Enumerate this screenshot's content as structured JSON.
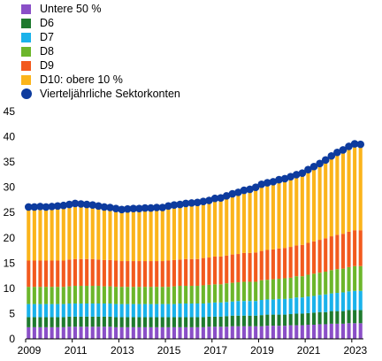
{
  "chart_data": {
    "type": "bar",
    "stacked": true,
    "title": "",
    "xlabel": "",
    "ylabel": "",
    "ylim": [
      0,
      45
    ],
    "yticks": [
      0,
      5,
      10,
      15,
      20,
      25,
      30,
      35,
      40,
      45
    ],
    "xticks": [
      "2009",
      "2011",
      "2013",
      "2015",
      "2017",
      "2019",
      "2021",
      "2023"
    ],
    "grid": false,
    "legend_position": "top-left",
    "periods_per_year": 4,
    "start_year": 2009,
    "categories": [
      "2009Q1",
      "2009Q2",
      "2009Q3",
      "2009Q4",
      "2010Q1",
      "2010Q2",
      "2010Q3",
      "2010Q4",
      "2011Q1",
      "2011Q2",
      "2011Q3",
      "2011Q4",
      "2012Q1",
      "2012Q2",
      "2012Q3",
      "2012Q4",
      "2013Q1",
      "2013Q2",
      "2013Q3",
      "2013Q4",
      "2014Q1",
      "2014Q2",
      "2014Q3",
      "2014Q4",
      "2015Q1",
      "2015Q2",
      "2015Q3",
      "2015Q4",
      "2016Q1",
      "2016Q2",
      "2016Q3",
      "2016Q4",
      "2017Q1",
      "2017Q2",
      "2017Q3",
      "2017Q4",
      "2018Q1",
      "2018Q2",
      "2018Q3",
      "2018Q4",
      "2019Q1",
      "2019Q2",
      "2019Q3",
      "2019Q4",
      "2020Q1",
      "2020Q2",
      "2020Q3",
      "2020Q4",
      "2021Q1",
      "2021Q2",
      "2021Q3",
      "2021Q4",
      "2022Q1",
      "2022Q2",
      "2022Q3",
      "2022Q4",
      "2023Q1",
      "2023Q2"
    ],
    "series": [
      {
        "name": "Untere 50 %",
        "color": "#8a4fc7",
        "values": [
          2.3,
          2.3,
          2.3,
          2.3,
          2.3,
          2.3,
          2.3,
          2.4,
          2.4,
          2.4,
          2.4,
          2.4,
          2.4,
          2.4,
          2.4,
          2.3,
          2.3,
          2.3,
          2.3,
          2.3,
          2.3,
          2.3,
          2.3,
          2.3,
          2.3,
          2.3,
          2.3,
          2.3,
          2.3,
          2.3,
          2.3,
          2.4,
          2.4,
          2.4,
          2.4,
          2.5,
          2.5,
          2.5,
          2.5,
          2.5,
          2.5,
          2.6,
          2.6,
          2.6,
          2.6,
          2.7,
          2.7,
          2.7,
          2.8,
          2.8,
          2.9,
          2.9,
          3.0,
          3.0,
          3.0,
          3.1,
          3.1,
          3.1
        ]
      },
      {
        "name": "D6",
        "color": "#1f7a2e",
        "values": [
          2.0,
          2.0,
          2.0,
          2.0,
          2.0,
          2.0,
          2.0,
          2.0,
          2.0,
          2.0,
          2.0,
          2.0,
          2.0,
          2.0,
          2.0,
          2.0,
          2.0,
          2.0,
          2.0,
          2.0,
          2.0,
          2.0,
          2.0,
          2.0,
          2.0,
          2.0,
          2.0,
          2.0,
          2.0,
          2.0,
          2.0,
          2.0,
          2.0,
          2.0,
          2.1,
          2.1,
          2.1,
          2.1,
          2.1,
          2.1,
          2.2,
          2.2,
          2.2,
          2.2,
          2.2,
          2.2,
          2.3,
          2.3,
          2.3,
          2.4,
          2.4,
          2.4,
          2.5,
          2.5,
          2.5,
          2.6,
          2.6,
          2.6
        ]
      },
      {
        "name": "D7",
        "color": "#1ab2ea",
        "values": [
          2.6,
          2.6,
          2.6,
          2.6,
          2.6,
          2.6,
          2.6,
          2.6,
          2.6,
          2.6,
          2.6,
          2.6,
          2.6,
          2.6,
          2.6,
          2.6,
          2.6,
          2.6,
          2.6,
          2.6,
          2.6,
          2.6,
          2.6,
          2.6,
          2.6,
          2.6,
          2.7,
          2.7,
          2.7,
          2.7,
          2.7,
          2.7,
          2.8,
          2.8,
          2.8,
          2.8,
          2.9,
          2.9,
          2.9,
          2.9,
          3.0,
          3.0,
          3.0,
          3.1,
          3.1,
          3.1,
          3.2,
          3.2,
          3.3,
          3.3,
          3.4,
          3.5,
          3.5,
          3.6,
          3.7,
          3.7,
          3.8,
          3.8
        ]
      },
      {
        "name": "D8",
        "color": "#6cb62b",
        "values": [
          3.4,
          3.4,
          3.4,
          3.4,
          3.4,
          3.4,
          3.4,
          3.4,
          3.5,
          3.5,
          3.5,
          3.5,
          3.5,
          3.4,
          3.4,
          3.4,
          3.4,
          3.4,
          3.4,
          3.4,
          3.4,
          3.4,
          3.4,
          3.4,
          3.4,
          3.5,
          3.5,
          3.5,
          3.5,
          3.5,
          3.6,
          3.6,
          3.6,
          3.6,
          3.7,
          3.7,
          3.7,
          3.8,
          3.8,
          3.8,
          3.9,
          3.9,
          4.0,
          4.0,
          4.1,
          4.1,
          4.2,
          4.2,
          4.3,
          4.4,
          4.4,
          4.5,
          4.6,
          4.7,
          4.7,
          4.8,
          4.9,
          4.9
        ]
      },
      {
        "name": "D9",
        "color": "#f25a1e",
        "values": [
          5.2,
          5.2,
          5.2,
          5.2,
          5.2,
          5.2,
          5.2,
          5.3,
          5.3,
          5.3,
          5.3,
          5.3,
          5.2,
          5.2,
          5.2,
          5.2,
          5.1,
          5.1,
          5.1,
          5.1,
          5.1,
          5.1,
          5.1,
          5.1,
          5.2,
          5.2,
          5.2,
          5.3,
          5.3,
          5.3,
          5.4,
          5.4,
          5.5,
          5.5,
          5.5,
          5.6,
          5.6,
          5.7,
          5.7,
          5.8,
          5.8,
          5.9,
          5.9,
          6.0,
          6.0,
          6.1,
          6.1,
          6.2,
          6.3,
          6.4,
          6.5,
          6.6,
          6.7,
          6.8,
          6.9,
          7.0,
          7.1,
          7.1
        ]
      },
      {
        "name": "D10: obere 10 %",
        "color": "#fbb41b",
        "values": [
          10.6,
          10.6,
          10.7,
          10.6,
          10.7,
          10.8,
          10.9,
          10.9,
          11.0,
          10.9,
          10.8,
          10.7,
          10.6,
          10.5,
          10.4,
          10.3,
          10.2,
          10.3,
          10.4,
          10.4,
          10.5,
          10.5,
          10.6,
          10.6,
          10.7,
          10.8,
          10.9,
          11.0,
          11.1,
          11.2,
          11.2,
          11.3,
          11.5,
          11.6,
          11.8,
          12.0,
          12.2,
          12.4,
          12.6,
          12.9,
          13.2,
          13.3,
          13.4,
          13.6,
          13.7,
          13.9,
          14.0,
          14.2,
          14.5,
          14.8,
          15.1,
          15.5,
          15.9,
          16.3,
          16.6,
          16.9,
          17.0,
          17.0
        ]
      }
    ],
    "line_series": {
      "name": "Vierteljährliche Sektorkonten",
      "color": "#0d3b9e",
      "values": [
        26.1,
        26.1,
        26.2,
        26.1,
        26.2,
        26.3,
        26.4,
        26.6,
        26.8,
        26.7,
        26.6,
        26.5,
        26.3,
        26.1,
        26.0,
        25.8,
        25.6,
        25.7,
        25.8,
        25.8,
        25.9,
        25.9,
        26.0,
        26.0,
        26.3,
        26.5,
        26.6,
        26.8,
        26.9,
        27.0,
        27.2,
        27.4,
        27.8,
        27.9,
        28.3,
        28.7,
        29.0,
        29.4,
        29.6,
        30.0,
        30.6,
        30.9,
        31.1,
        31.5,
        31.7,
        32.1,
        32.5,
        32.8,
        33.5,
        34.1,
        34.7,
        35.4,
        36.2,
        36.9,
        37.4,
        38.1,
        38.6,
        38.5
      ]
    }
  }
}
